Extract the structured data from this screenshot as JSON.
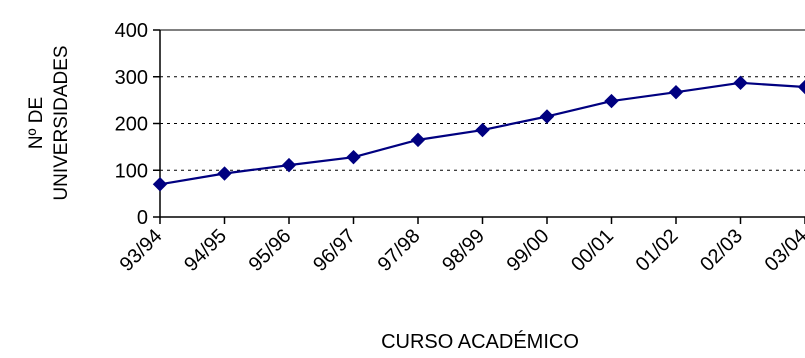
{
  "chart_data": {
    "type": "line",
    "title": "",
    "xlabel": "CURSO ACADÉMICO",
    "ylabel": [
      "Nº DE",
      "UNIVERSIDADES"
    ],
    "categories": [
      "93/94",
      "94/95",
      "95/96",
      "96/97",
      "97/98",
      "98/99",
      "99/00",
      "00/01",
      "01/02",
      "02/03",
      "03/04"
    ],
    "yticks": [
      "0",
      "100",
      "200",
      "300",
      "400"
    ],
    "ylim": [
      0,
      400
    ],
    "grid": "horizontal dotted",
    "legend": "none",
    "series": [
      {
        "values": [
          70,
          93,
          111,
          128,
          165,
          186,
          215,
          248,
          267,
          287,
          278
        ],
        "color": "#000080",
        "marker": "diamond"
      }
    ]
  }
}
